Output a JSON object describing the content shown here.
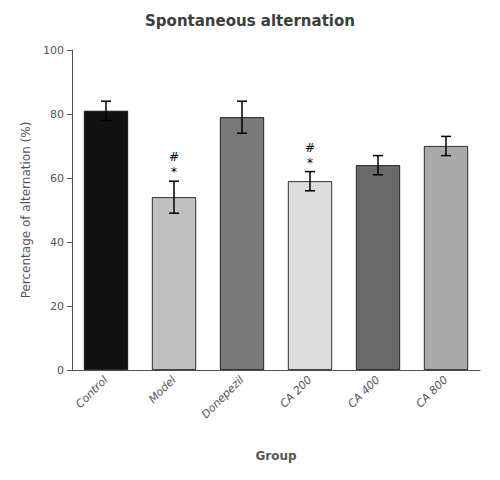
{
  "chart_data": {
    "type": "bar",
    "title": "Spontaneous alternation",
    "xlabel": "Group",
    "ylabel": "Percentage of alternation (%)",
    "categories": [
      "Control",
      "Model",
      "Donepezil",
      "CA 200",
      "CA 400",
      "CA 800"
    ],
    "values": [
      81.0,
      54.0,
      79.0,
      59.0,
      64.0,
      70.0
    ],
    "errors": [
      3.0,
      5.0,
      5.0,
      3.0,
      3.0,
      3.0
    ],
    "colors": [
      "#111111",
      "#c0c0c0",
      "#787878",
      "#dcdcdc",
      "#696969",
      "#aaaaaa"
    ],
    "annotations": [
      {
        "category": "Model",
        "texts": [
          "#",
          "*"
        ]
      },
      {
        "category": "CA 200",
        "texts": [
          "#",
          "*"
        ]
      }
    ],
    "ylim": [
      0,
      100
    ],
    "yticks": [
      0,
      20,
      40,
      60,
      80,
      100
    ],
    "grid": false
  }
}
